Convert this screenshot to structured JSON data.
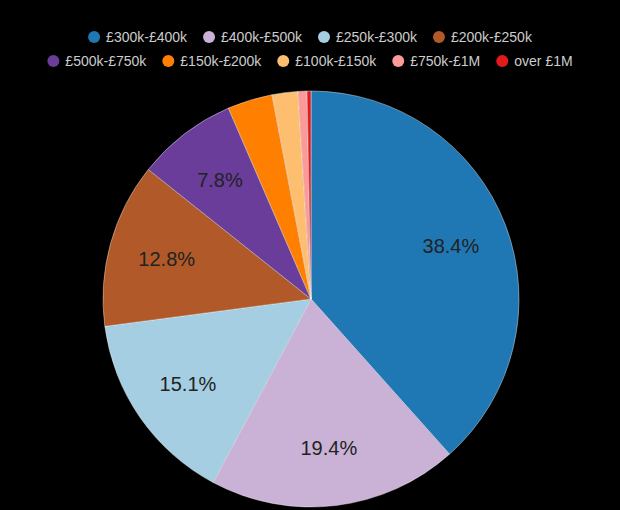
{
  "chart_data": {
    "type": "pie",
    "categories": [
      "£300k-£400k",
      "£400k-£500k",
      "£250k-£300k",
      "£200k-£250k",
      "£500k-£750k",
      "£150k-£200k",
      "£100k-£150k",
      "£750k-£1M",
      "over £1M"
    ],
    "values": [
      38.4,
      19.4,
      15.1,
      12.8,
      7.8,
      3.5,
      2.0,
      0.7,
      0.3
    ],
    "value_labels": [
      "38.4%",
      "19.4%",
      "15.1%",
      "12.8%",
      "7.8%",
      null,
      null,
      null,
      null
    ],
    "colors": [
      "#1f78b4",
      "#cab2d6",
      "#a6cee3",
      "#b15928",
      "#6a3d9a",
      "#ff7f00",
      "#fdbf6f",
      "#fb9a99",
      "#e31a1c"
    ],
    "legend": "top",
    "data_labels": true
  }
}
